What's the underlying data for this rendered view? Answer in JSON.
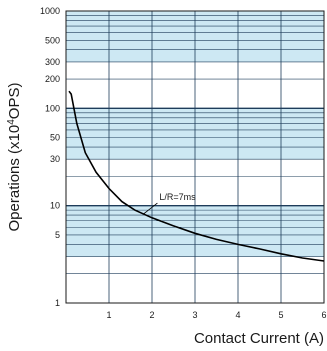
{
  "chart_data": {
    "type": "line",
    "title": "",
    "xlabel": "Contact Current (A)",
    "ylabel_prefix": "Operations (x10",
    "ylabel_exp": "4",
    "ylabel_suffix": "OPS)",
    "xlim": [
      0,
      6
    ],
    "ylim": [
      1,
      1000
    ],
    "yscale": "log",
    "grid": true,
    "xticks": [
      1,
      2,
      3,
      4,
      5,
      6
    ],
    "yticks": [
      1,
      5,
      10,
      30,
      50,
      100,
      200,
      300,
      500,
      1000
    ],
    "annotation": "L/R=7ms",
    "colors": {
      "band": "#cde8f3",
      "grid": "#1e3c5a",
      "line": "#000000",
      "frame": "#1a1a1a"
    },
    "series": [
      {
        "x": [
          0.07,
          0.12,
          0.25,
          0.45,
          0.7,
          1.0,
          1.3,
          1.6,
          2.0,
          2.5,
          3.0,
          3.5,
          4.0,
          4.5,
          5.0,
          5.5,
          6.0
        ],
        "y": [
          150,
          140,
          70,
          35,
          22,
          15,
          11,
          9,
          7.5,
          6.2,
          5.2,
          4.5,
          4.0,
          3.6,
          3.2,
          2.9,
          2.7
        ]
      }
    ]
  }
}
